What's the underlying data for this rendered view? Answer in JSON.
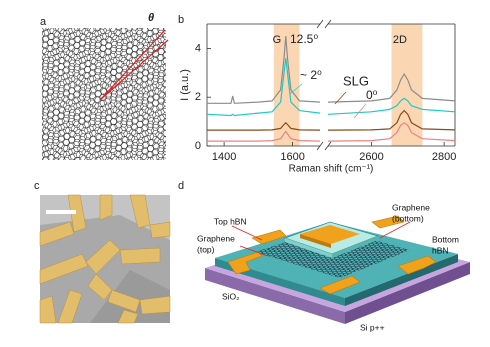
{
  "panel_labels": [
    "a",
    "b",
    "c",
    "d"
  ],
  "panel_a": {
    "angle_label": "θ"
  },
  "chart_data": {
    "type": "line",
    "x_label": "Raman shift (cm⁻¹)",
    "y_label": "I (a.u.)",
    "ylim": [
      0,
      5
    ],
    "yticks": [
      0,
      2,
      4
    ],
    "x_segments": [
      {
        "xlim": [
          1350,
          1680
        ],
        "xticks": [
          1400,
          1600
        ]
      },
      {
        "xlim": [
          2480,
          2830
        ],
        "xticks": [
          2600,
          2800
        ]
      }
    ],
    "bands": [
      {
        "label": "G",
        "range": [
          1545,
          1620
        ],
        "color": "#fbd6b3"
      },
      {
        "label": "2D",
        "range": [
          2655,
          2740
        ],
        "color": "#fbd6b3"
      }
    ],
    "x": [
      1350,
      1420,
      1425,
      1430,
      1500,
      1540,
      1565,
      1575,
      1580,
      1585,
      1595,
      1620,
      1680,
      2480,
      2600,
      2650,
      2670,
      2680,
      2690,
      2700,
      2710,
      2740,
      2830
    ],
    "series": [
      {
        "name": "12.5⁰",
        "color": "#8c8c8c",
        "values": [
          1.75,
          1.75,
          2.05,
          1.75,
          1.8,
          1.85,
          2.3,
          3.6,
          4.5,
          3.6,
          2.3,
          1.85,
          1.8,
          1.8,
          1.85,
          1.95,
          2.3,
          2.7,
          2.95,
          2.7,
          2.3,
          1.95,
          1.85
        ]
      },
      {
        "name": "~ 2⁰",
        "color": "#1fc9c4",
        "values": [
          1.3,
          1.25,
          1.3,
          1.25,
          1.35,
          1.4,
          1.8,
          3.0,
          3.6,
          3.0,
          1.8,
          1.45,
          1.35,
          1.3,
          1.4,
          1.5,
          1.65,
          1.85,
          1.95,
          1.85,
          1.65,
          1.5,
          1.4
        ]
      },
      {
        "name": "SLG",
        "color": "#8b4a14",
        "values": [
          0.65,
          0.65,
          0.65,
          0.65,
          0.65,
          0.66,
          0.72,
          0.88,
          0.95,
          0.88,
          0.72,
          0.66,
          0.65,
          0.65,
          0.66,
          0.7,
          0.95,
          1.3,
          1.45,
          1.3,
          0.95,
          0.7,
          0.66
        ]
      },
      {
        "name": "0⁰",
        "color": "#f08080",
        "values": [
          0.2,
          0.2,
          0.2,
          0.2,
          0.2,
          0.22,
          0.3,
          0.5,
          0.6,
          0.5,
          0.3,
          0.22,
          0.2,
          0.2,
          0.22,
          0.3,
          0.55,
          0.85,
          0.95,
          0.85,
          0.55,
          0.3,
          0.22
        ]
      }
    ]
  },
  "panel_d": {
    "labels": [
      {
        "lines": [
          "Top hBN"
        ]
      },
      {
        "lines": [
          "Graphene",
          "(top)"
        ]
      },
      {
        "lines": [
          "Graphene",
          "(bottom)"
        ]
      },
      {
        "lines": [
          "Bottom",
          "hBN"
        ]
      },
      {
        "lines": [
          "SiO₂"
        ]
      },
      {
        "lines": [
          "Si p++"
        ]
      }
    ]
  }
}
